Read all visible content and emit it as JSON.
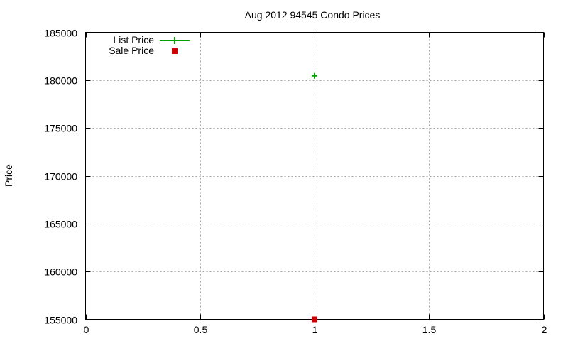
{
  "chart_data": {
    "type": "scatter",
    "title": "Aug 2012 94545 Condo Prices",
    "xlabel": "",
    "ylabel": "Price",
    "xlim": [
      0,
      2
    ],
    "ylim": [
      155000,
      185000
    ],
    "xticks": [
      0,
      0.5,
      1,
      1.5,
      2
    ],
    "xtick_labels": [
      "0",
      "0.5",
      "1",
      "1.5",
      "2"
    ],
    "yticks": [
      155000,
      160000,
      165000,
      170000,
      175000,
      180000,
      185000
    ],
    "ytick_labels": [
      "155000",
      "160000",
      "165000",
      "170000",
      "175000",
      "180000",
      "185000"
    ],
    "grid": true,
    "legend_position": "top-left",
    "series": [
      {
        "name": "List Price",
        "color": "#00a000",
        "marker": "plus",
        "x": [
          1
        ],
        "y": [
          180450
        ]
      },
      {
        "name": "Sale Price",
        "color": "#cc0000",
        "marker": "square",
        "x": [
          1
        ],
        "y": [
          155000
        ]
      }
    ]
  }
}
